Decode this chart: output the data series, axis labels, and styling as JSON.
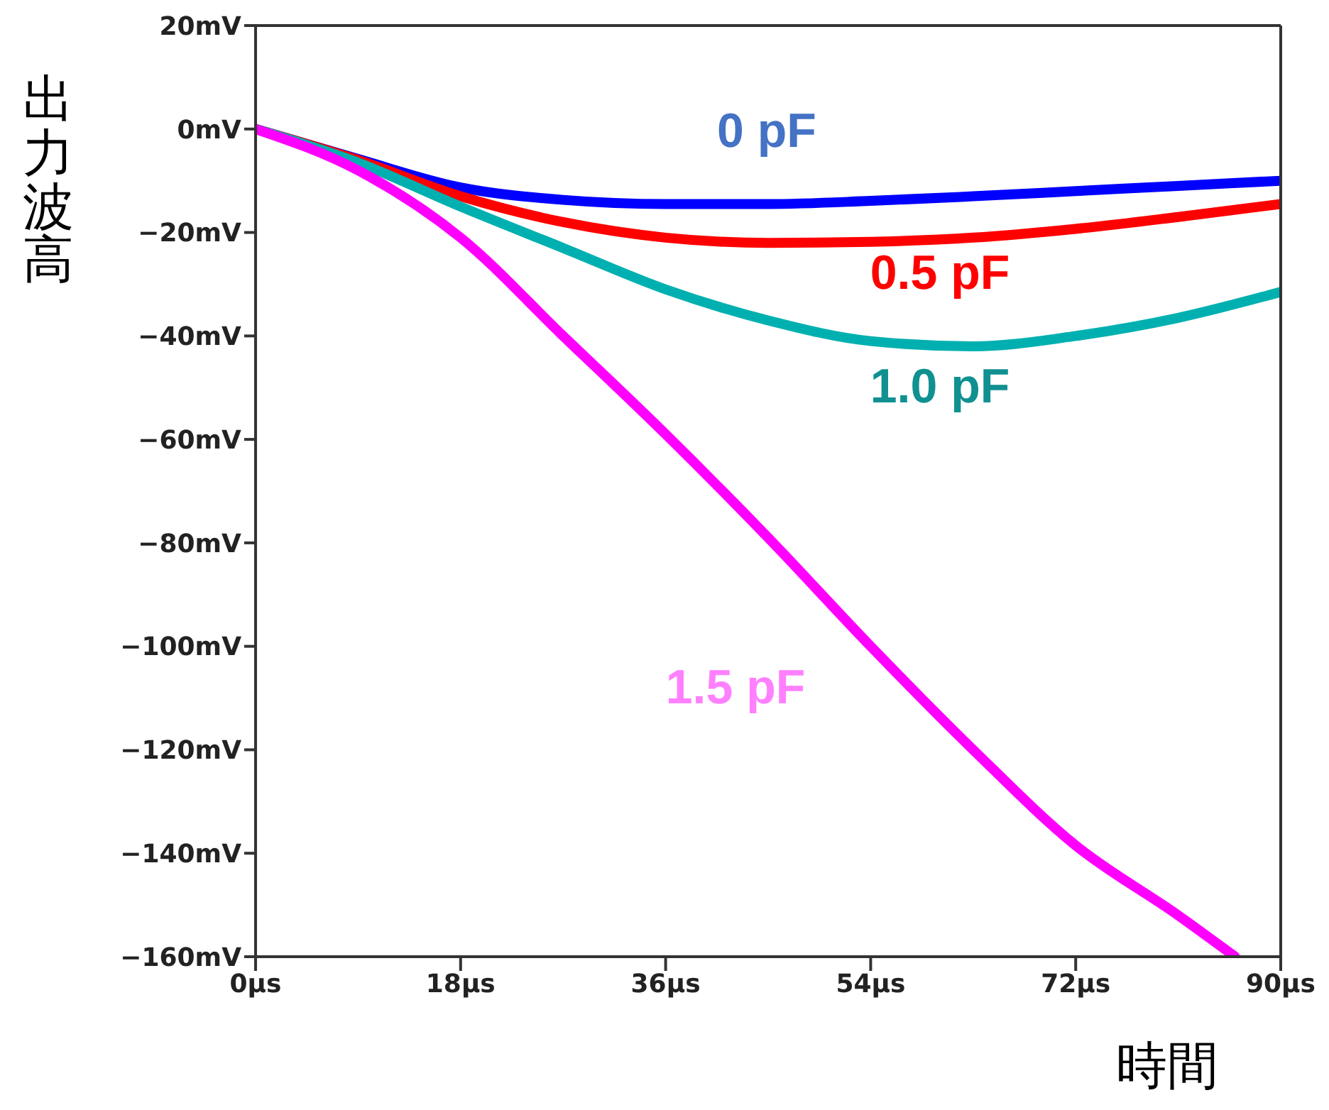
{
  "chart_data": {
    "type": "line",
    "xlabel": "時間",
    "ylabel": "出力波高",
    "x": [
      0,
      9,
      18,
      27,
      36,
      45,
      54,
      63,
      72,
      81,
      90
    ],
    "xlim": [
      0,
      90
    ],
    "xticks": [
      {
        "value": 0,
        "label": "0µs"
      },
      {
        "value": 18,
        "label": "18µs"
      },
      {
        "value": 36,
        "label": "36µs"
      },
      {
        "value": 54,
        "label": "54µs"
      },
      {
        "value": 72,
        "label": "72µs"
      },
      {
        "value": 90,
        "label": "90µs"
      }
    ],
    "ylim": [
      -160,
      20
    ],
    "yticks": [
      {
        "value": 20,
        "label": "20mV"
      },
      {
        "value": 0,
        "label": "0mV"
      },
      {
        "value": -20,
        "label": "−20mV"
      },
      {
        "value": -40,
        "label": "−40mV"
      },
      {
        "value": -60,
        "label": "−60mV"
      },
      {
        "value": -80,
        "label": "−80mV"
      },
      {
        "value": -100,
        "label": "−100mV"
      },
      {
        "value": -120,
        "label": "−120mV"
      },
      {
        "value": -140,
        "label": "−140mV"
      },
      {
        "value": -160,
        "label": "−160mV"
      }
    ],
    "marker": "none",
    "line_style": "solid",
    "series": [
      {
        "name": "0 pF",
        "color": "#0000ff",
        "values": [
          0,
          -5.8,
          -11.3,
          -13.7,
          -14.5,
          -14.5,
          -13.9,
          -13,
          -12,
          -11,
          -10
        ]
      },
      {
        "name": "0.5 pF",
        "color": "#ff0000",
        "values": [
          0,
          -6,
          -13,
          -18,
          -21,
          -22,
          -21.8,
          -21,
          -19.3,
          -17,
          -14.5
        ]
      },
      {
        "name": "1.0 pF",
        "color": "#00b0b0",
        "values": [
          0,
          -6.5,
          -15,
          -23,
          -31,
          -37,
          -41,
          -42,
          -40,
          -36.5,
          -31.5
        ]
      },
      {
        "name": "1.5 pF",
        "color": "#ff00ff",
        "x": [
          0,
          9,
          18,
          27,
          36,
          45,
          54,
          63,
          72,
          81,
          86
        ],
        "values": [
          0,
          -8,
          -21,
          -40,
          -59,
          -79,
          -100,
          -120,
          -138.5,
          -152,
          -160
        ]
      }
    ]
  }
}
